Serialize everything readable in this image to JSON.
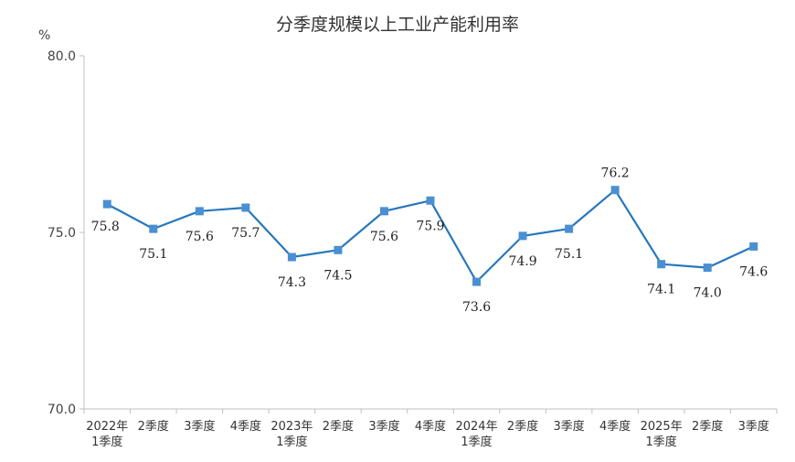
{
  "chart_data": {
    "type": "line",
    "title": "分季度规模以上工业产能利用率",
    "ylabel": "%",
    "ylim": [
      70,
      80
    ],
    "yticks": [
      "70.0",
      "75.0",
      "80.0"
    ],
    "categories": [
      [
        "2022年",
        "1季度"
      ],
      [
        "2季度"
      ],
      [
        "3季度"
      ],
      [
        "4季度"
      ],
      [
        "2023年",
        "1季度"
      ],
      [
        "2季度"
      ],
      [
        "3季度"
      ],
      [
        "4季度"
      ],
      [
        "2024年",
        "1季度"
      ],
      [
        "2季度"
      ],
      [
        "3季度"
      ],
      [
        "4季度"
      ],
      [
        "2025年",
        "1季度"
      ],
      [
        "2季度"
      ],
      [
        "3季度"
      ]
    ],
    "values": [
      75.8,
      75.1,
      75.6,
      75.7,
      74.3,
      74.5,
      75.6,
      75.9,
      73.6,
      74.9,
      75.1,
      76.2,
      74.1,
      74.0,
      74.6
    ],
    "labels": [
      "75.8",
      "75.1",
      "75.6",
      "75.7",
      "74.3",
      "74.5",
      "75.6",
      "75.9",
      "73.6",
      "74.9",
      "75.1",
      "76.2",
      "74.1",
      "74.0",
      "74.6"
    ],
    "label_pos": [
      "left",
      "below",
      "below",
      "below",
      "below",
      "below",
      "below",
      "below",
      "below",
      "below",
      "below",
      "above",
      "below",
      "below",
      "below"
    ],
    "line_color": "#2677BC",
    "marker_color": "#4A8FD2",
    "grid": false
  }
}
